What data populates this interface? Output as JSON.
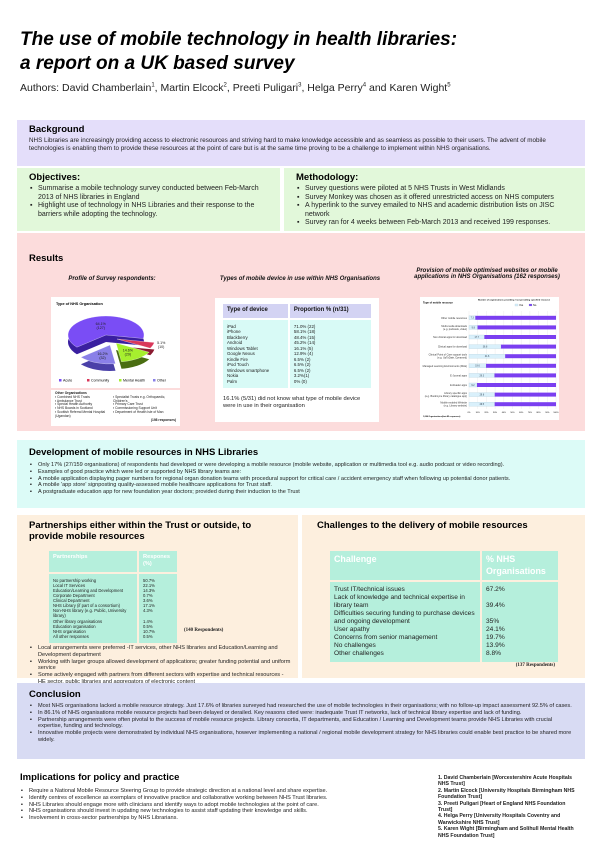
{
  "title": {
    "line1": "The use of mobile technology in health libraries:",
    "line2": "a report on a UK based survey"
  },
  "authors": {
    "prefix": "Authors: ",
    "names": [
      {
        "name": "David Chamberlain",
        "sup": "1"
      },
      {
        "name": "Martin Elcock",
        "sup": "2"
      },
      {
        "name": "Preeti Puligari",
        "sup": "3"
      },
      {
        "name": "Helga Perry",
        "sup": "4"
      },
      {
        "name": "Karen Wight",
        "sup": "5"
      }
    ]
  },
  "colors": {
    "background": "#e4defa",
    "objectives": "#e2f8da",
    "results": "#fcdcdc",
    "development": "#dcfbf7",
    "partnerships": "#fdefde",
    "conclusion": "#d8dbf3",
    "acute": "#7a4df5",
    "community": "#d9375a",
    "mental_health": "#a6ef2e",
    "other": "#8a80e8",
    "yes": "#d9f0fb",
    "no": "#7a3ff0"
  },
  "background": {
    "heading": "Background",
    "text": "NHS Libraries are increasingly providing access to electronic resources and striving hard to make knowledge accessible and as seamless as possible to their users. The advent of mobile technologies is enabling them to provide these resources at the point of care but is at the same time proving to be a challenge to implement within NHS organisations."
  },
  "objectives": {
    "heading": "Objectives:",
    "items": [
      "Summarise a mobile technology survey conducted  between Feb-March 2013 of NHS libraries in England",
      "Highlight use of technology in NHS Libraries and their response to the barriers while adopting the technology."
    ]
  },
  "methodology": {
    "heading": "Methodology:",
    "items": [
      "Survey questions were piloted at 5 NHS Trusts in West Midlands",
      "Survey Monkey was chosen  as it offered unrestricted access on NHS computers",
      "A hyperlink to the survey emailed to NHS and academic distribution lists on JISC network",
      "Survey ran for 4 weeks between Feb-March 2013 and received 199 responses."
    ]
  },
  "results": {
    "heading": "Results",
    "profile_title": "Profile of Survey respondents:",
    "devices_title": "Types of mobile device in use within NHS Organisations",
    "provision_title": "Provision of mobile optimised websites or mobile applications in NHS Organisations (162 responses)"
  },
  "chart_data": [
    {
      "type": "pie",
      "title": "Type of NHS Organisation",
      "slices": [
        {
          "name": "Acute",
          "value": 64.1,
          "count": 127,
          "label": "64.1%",
          "count_label": "(127)"
        },
        {
          "name": "Community",
          "value": 5.1,
          "count": 10,
          "label": "5.1%",
          "count_label": "(10)"
        },
        {
          "name": "Mental Health",
          "value": 14.6,
          "count": 29,
          "label": "14.6%",
          "count_label": "(29)"
        },
        {
          "name": "Other",
          "value": 16.2,
          "count": 32,
          "label": "16.2%",
          "count_label": "(32)"
        }
      ],
      "other_heading": "Other Organisations",
      "other_left": [
        "Combined NHS Trusts",
        "Ambulance Trust",
        "Special Health Authority",
        "NHS Boards in Scotland",
        "Scottish Referral Mental Hospital (Ugandan)"
      ],
      "other_right": [
        "Specialist Trusts e.g. Orthopaedic, Children's",
        "Primary Care Trust",
        "Commissioning Support Unit",
        "Department of Health Isle of Man"
      ],
      "note": "(198 responses)"
    },
    {
      "type": "bar",
      "stacked": true,
      "orientation": "horizontal",
      "title": "Number of organisations providing / not providing specified resource",
      "ylabel": "Type of mobile resource",
      "categories": [
        "Other mobile resources",
        "Multi-media downloads (e.g. podcasts, video)",
        "Non clinical apps for download",
        "Clinical apps for download",
        "Clinical Point of Care support tools (e.g. UpToDate, Dynamed)",
        "Managed Learning Environments (MLE)",
        "E-Journal apps",
        "E-Reader apps",
        "Library specific apps (e.g. Bookmyne library catalogue app)",
        "Mobile enabled Website (e.g. Library website)"
      ],
      "series": [
        {
          "name": "Yes",
          "values": [
            7.3,
            9.8,
            17.7,
            36.8,
            41.6,
            19.6,
            29.3,
            9.2,
            29.6,
            29.5
          ]
        },
        {
          "name": "No",
          "values": [
            92.7,
            90.2,
            82.3,
            63.2,
            58.4,
            80.4,
            70.7,
            90.8,
            70.4,
            70.5
          ]
        }
      ],
      "xticks": [
        "0%",
        "10%",
        "20%",
        "30%",
        "40%",
        "50%",
        "60%",
        "70%",
        "80%",
        "90%",
        "100%"
      ],
      "xlim": [
        0,
        100
      ],
      "grid": true,
      "legend": "top",
      "note": "1,086 Organisations(fact:82 responses)"
    }
  ],
  "devices": {
    "headers": [
      "Type of device",
      "Proportion % (n/31)"
    ],
    "rows": [
      [
        "iPad",
        "71.0% (22)"
      ],
      [
        "iPhone",
        "58.1% (18)"
      ],
      [
        "Blackberry",
        "48.4% (15)"
      ],
      [
        "Android",
        "45.2% (14)"
      ],
      [
        "Windows Tablet",
        "16.1% (5)"
      ],
      [
        "Google Nexus",
        "12.9% (4)"
      ],
      [
        "Kindle Fire",
        "6.5% (2)"
      ],
      [
        "iPod Touch",
        "6.5% (2)"
      ],
      [
        "Windows smartphone",
        "6.5% (2)"
      ],
      [
        "Nokia",
        "3.2%(1)"
      ],
      [
        "Palm",
        "0% (0)"
      ]
    ],
    "note": "16.1% (5/31) did not know what type of mobile device were in use in their organisation"
  },
  "development": {
    "heading": "Development of mobile resources in NHS Libraries",
    "items": [
      "Only 17% (27/159 organisations) of respondents had developed or were developing a mobile resource (mobile website, application or multimedia tool e.g. audio podcast or video recording).",
      "Examples of good practice which were led or supported by NHS library teams are:",
      "A mobile application displaying pager numbers for regional organ donation teams with procedural support for critical care / accident emergency staff when following up potential donor patients.",
      "A mobile 'app store' signposting quality-assessed mobile healthcare applications for Trust staff.",
      "A postgraduate education app for new foundation year doctors; provided during their induction to the Trust"
    ]
  },
  "partnerships": {
    "heading": "Partnerships either within the Trust or outside, to provide mobile resources",
    "headers": [
      "Partnerships",
      "Respones (%)"
    ],
    "rows": [
      [
        "No partnership working",
        "50.7%"
      ],
      [
        "Local IT Services",
        "22.1%"
      ],
      [
        "Education/Learning and Development",
        "14.3%"
      ],
      [
        "Corporate Department",
        "0.7%"
      ],
      [
        "Clinical Department",
        "3.6%"
      ],
      [
        "NHS Library (if part of a consortium)",
        "17.1%"
      ],
      [
        "Non-NHS library (e.g. Public, University library)",
        "4.3%"
      ],
      [
        "Other library organisations",
        "1.4%"
      ],
      [
        "Education organisation",
        "0.5%"
      ],
      [
        "NHS organisation",
        "10.7%"
      ],
      [
        "All other responses",
        "0.5%"
      ]
    ],
    "note": "(140 Respondents)",
    "items": [
      "Local arrangements were preferred -IT services, other NHS libraries and Education/Learning and Development department",
      "Working with larger groups allowed development of applications; greater funding potential and uniform service",
      "Some actively engaged with partners from different sectors with expertise and technical resources -HE sector, public libraries and aggregators of electronic content"
    ]
  },
  "challenges": {
    "heading": "Challenges to the delivery of mobile resources",
    "headers": [
      "Challenge",
      "% NHS Organisations"
    ],
    "rows": [
      [
        "Trust IT/technical issues",
        "67.2%"
      ],
      [
        "Lack of knowledge and technical expertise in library team",
        "39.4%"
      ],
      [
        "Difficulties securing funding to purchase devices and ongoing development",
        "35%"
      ],
      [
        "User apathy",
        "24.1%"
      ],
      [
        "Concerns from senior management",
        "19.7%"
      ],
      [
        "No challenges",
        "13.9%"
      ],
      [
        "Other challenges",
        "8.8%"
      ]
    ],
    "note": "(137 Respondents)"
  },
  "conclusion": {
    "heading": "Conclusion",
    "items": [
      "Most NHS organisations lacked a mobile resource strategy. Just 17.6% of libraries surveyed had researched the use of mobile technologies in their organisations; with no follow-up impact assessment 92.5% of cases.",
      "In 86.1% of NHS organisations mobile resource projects had been delayed or derailed. Key reasons cited were: inadequate Trust IT networks, lack of technical library expertise and lack of funding.",
      "Partnership arrangements were often pivotal to the success of mobile resource projects. Library consortia, IT departments, and Education / Learning and Development teams provide NHS Libraries with crucial expertise, funding and technology.",
      "Innovative mobile projects were demonstrated by individual NHS organisations, however implementing a national / regional mobile development strategy for NHS libraries could enable best practice to be shared more widely."
    ]
  },
  "implications": {
    "heading": "Implications for policy and practice",
    "items": [
      "Require a National Mobile Resource Steering Group to provide strategic direction at a national level and share expertise.",
      "Identify centres of excellence as exemplars of innovative practice and collaborative working between NHS Trust libraries.",
      "NHS Libraries should engage more with clinicians and identify ways to adopt mobile technologies at the point of care.",
      "NHS organisations should invest in updating new technologies to assist staff updating their knowledge and skills.",
      "Involvement in cross-sector partnerships by NHS Librarians."
    ]
  },
  "affiliations": [
    "1. David Chamberlain [Worcestershire Acute Hospitals NHS Trust]",
    "2. Martin Elcock [University Hospitals Birmingham NHS Foundation Trust]",
    "3. Preeti Puligari [Heart of England NHS Foundation Trust]",
    "4. Helga Perry [University Hospitals Coventry and Warwickshire NHS Trust]",
    "5. Karen Wight [Birmingham and Solihull Mental Health NHS Foundation Trust]"
  ]
}
